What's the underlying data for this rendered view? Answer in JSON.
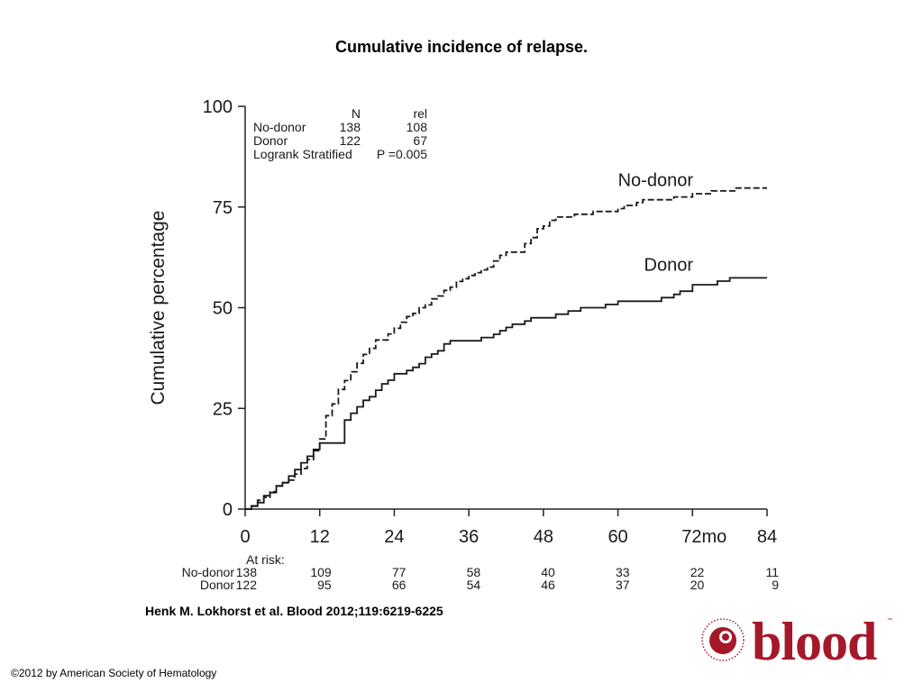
{
  "slide_title": "Cumulative incidence of relapse.",
  "citation": "Henk M. Lokhorst et al. Blood 2012;119:6219-6225",
  "copyright": "©2012 by American Society of Hematology",
  "logo": {
    "wordmark": "blood",
    "seal_text": "AMERICAN SOCIETY OF HEMATOLOGY",
    "brand_color": "#a5182a"
  },
  "chart_data": {
    "type": "line",
    "ylabel": "Cumulative percentage",
    "x_tick_labels": [
      "0",
      "12",
      "24",
      "36",
      "48",
      "60",
      "72mo",
      "84"
    ],
    "x_ticks": [
      0,
      12,
      24,
      36,
      48,
      60,
      72,
      84
    ],
    "xlim": [
      0,
      84
    ],
    "y_ticks": [
      0,
      25,
      50,
      75,
      100
    ],
    "ylim": [
      0,
      100
    ],
    "grid": false,
    "legend_table": {
      "headers": [
        "",
        "N",
        "rel"
      ],
      "rows": [
        [
          "No-donor",
          "138",
          "108"
        ],
        [
          "Donor",
          "122",
          "67"
        ]
      ],
      "test_label": "Logrank Stratified",
      "p_value": "P =0.005"
    },
    "series": [
      {
        "name": "No-donor",
        "line_style": "dashed",
        "points": [
          [
            0,
            0
          ],
          [
            1,
            0.7
          ],
          [
            2,
            2.2
          ],
          [
            3,
            2.9
          ],
          [
            4,
            4.3
          ],
          [
            5,
            5.8
          ],
          [
            6,
            6.5
          ],
          [
            7,
            7.2
          ],
          [
            8,
            8.7
          ],
          [
            9,
            10.1
          ],
          [
            10,
            12.3
          ],
          [
            11,
            14.5
          ],
          [
            12,
            17.4
          ],
          [
            13,
            23.2
          ],
          [
            14,
            26.1
          ],
          [
            15,
            29.7
          ],
          [
            16,
            31.9
          ],
          [
            17,
            34.1
          ],
          [
            18,
            36.2
          ],
          [
            19,
            38.4
          ],
          [
            20,
            39.9
          ],
          [
            21,
            42
          ],
          [
            22,
            42
          ],
          [
            23,
            43.5
          ],
          [
            24,
            44.9
          ],
          [
            25,
            46.4
          ],
          [
            26,
            47.8
          ],
          [
            27,
            48.6
          ],
          [
            28,
            50
          ],
          [
            29,
            50.7
          ],
          [
            30,
            52.2
          ],
          [
            31,
            52.9
          ],
          [
            32,
            54.3
          ],
          [
            33,
            55.1
          ],
          [
            34,
            56.5
          ],
          [
            35,
            57.2
          ],
          [
            36,
            58
          ],
          [
            37,
            58.7
          ],
          [
            38,
            59.4
          ],
          [
            39,
            60.1
          ],
          [
            40,
            61.6
          ],
          [
            41,
            63
          ],
          [
            42,
            63.8
          ],
          [
            43,
            63.8
          ],
          [
            44,
            63.8
          ],
          [
            45,
            65.9
          ],
          [
            46,
            67.4
          ],
          [
            47,
            69.6
          ],
          [
            48,
            70.3
          ],
          [
            49,
            71.7
          ],
          [
            50,
            72.5
          ],
          [
            51,
            72.5
          ],
          [
            52,
            72.5
          ],
          [
            53,
            73.2
          ],
          [
            54,
            73.2
          ],
          [
            55,
            73.2
          ],
          [
            56,
            73.9
          ],
          [
            57,
            73.9
          ],
          [
            58,
            73.9
          ],
          [
            59,
            73.9
          ],
          [
            60,
            74.6
          ],
          [
            61,
            75.4
          ],
          [
            62,
            75.4
          ],
          [
            63,
            76.1
          ],
          [
            64,
            76.8
          ],
          [
            65,
            76.8
          ],
          [
            66,
            76.8
          ],
          [
            67,
            76.8
          ],
          [
            68,
            76.8
          ],
          [
            69,
            77.5
          ],
          [
            70,
            77.5
          ],
          [
            71,
            77.5
          ],
          [
            72,
            78.3
          ],
          [
            73,
            78.3
          ],
          [
            74,
            78.3
          ],
          [
            75,
            79
          ],
          [
            76,
            79
          ],
          [
            77,
            79
          ],
          [
            78,
            79
          ],
          [
            79,
            79.7
          ],
          [
            80,
            79.7
          ],
          [
            81,
            79.7
          ],
          [
            82,
            79.7
          ],
          [
            83,
            79.7
          ],
          [
            84,
            79.7
          ]
        ],
        "end_label": "No-donor"
      },
      {
        "name": "Donor",
        "line_style": "solid",
        "points": [
          [
            0,
            0
          ],
          [
            1,
            0.8
          ],
          [
            2,
            1.6
          ],
          [
            3,
            3.3
          ],
          [
            4,
            4.1
          ],
          [
            5,
            5.7
          ],
          [
            6,
            6.6
          ],
          [
            7,
            8.2
          ],
          [
            8,
            9.8
          ],
          [
            9,
            11.5
          ],
          [
            10,
            13.1
          ],
          [
            11,
            14.8
          ],
          [
            12,
            16.4
          ],
          [
            13,
            16.4
          ],
          [
            14,
            16.4
          ],
          [
            15,
            16.4
          ],
          [
            16,
            22.1
          ],
          [
            17,
            23.8
          ],
          [
            18,
            25.4
          ],
          [
            19,
            27
          ],
          [
            20,
            27.9
          ],
          [
            21,
            29.5
          ],
          [
            22,
            31.1
          ],
          [
            23,
            32
          ],
          [
            24,
            33.6
          ],
          [
            25,
            33.6
          ],
          [
            26,
            34.4
          ],
          [
            27,
            35.2
          ],
          [
            28,
            36.1
          ],
          [
            29,
            37.7
          ],
          [
            30,
            38.5
          ],
          [
            31,
            39.3
          ],
          [
            32,
            41
          ],
          [
            33,
            41.8
          ],
          [
            34,
            41.8
          ],
          [
            35,
            41.8
          ],
          [
            36,
            41.8
          ],
          [
            37,
            41.8
          ],
          [
            38,
            42.6
          ],
          [
            39,
            42.6
          ],
          [
            40,
            43.4
          ],
          [
            41,
            44.3
          ],
          [
            42,
            45.1
          ],
          [
            43,
            45.9
          ],
          [
            44,
            45.9
          ],
          [
            45,
            46.7
          ],
          [
            46,
            47.5
          ],
          [
            47,
            47.5
          ],
          [
            48,
            47.5
          ],
          [
            49,
            47.5
          ],
          [
            50,
            48.4
          ],
          [
            51,
            48.4
          ],
          [
            52,
            49.2
          ],
          [
            53,
            49.2
          ],
          [
            54,
            50
          ],
          [
            55,
            50
          ],
          [
            56,
            50
          ],
          [
            57,
            50
          ],
          [
            58,
            50.8
          ],
          [
            59,
            50.8
          ],
          [
            60,
            51.6
          ],
          [
            61,
            51.6
          ],
          [
            62,
            51.6
          ],
          [
            63,
            51.6
          ],
          [
            64,
            51.6
          ],
          [
            65,
            51.6
          ],
          [
            66,
            51.6
          ],
          [
            67,
            52.5
          ],
          [
            68,
            52.5
          ],
          [
            69,
            53.3
          ],
          [
            70,
            54.1
          ],
          [
            71,
            54.1
          ],
          [
            72,
            55.7
          ],
          [
            73,
            55.7
          ],
          [
            74,
            55.7
          ],
          [
            75,
            55.7
          ],
          [
            76,
            56.6
          ],
          [
            77,
            56.6
          ],
          [
            78,
            57.4
          ],
          [
            79,
            57.4
          ],
          [
            80,
            57.4
          ],
          [
            81,
            57.4
          ],
          [
            82,
            57.4
          ],
          [
            83,
            57.4
          ],
          [
            84,
            57.4
          ]
        ],
        "end_label": "Donor"
      }
    ],
    "at_risk": {
      "title": "At risk:",
      "rows": [
        {
          "label": "No-donor",
          "values": [
            "138",
            "109",
            "77",
            "58",
            "40",
            "33",
            "22",
            "11"
          ]
        },
        {
          "label": "Donor",
          "values": [
            "122",
            "95",
            "66",
            "54",
            "46",
            "37",
            "20",
            "9"
          ]
        }
      ]
    }
  }
}
